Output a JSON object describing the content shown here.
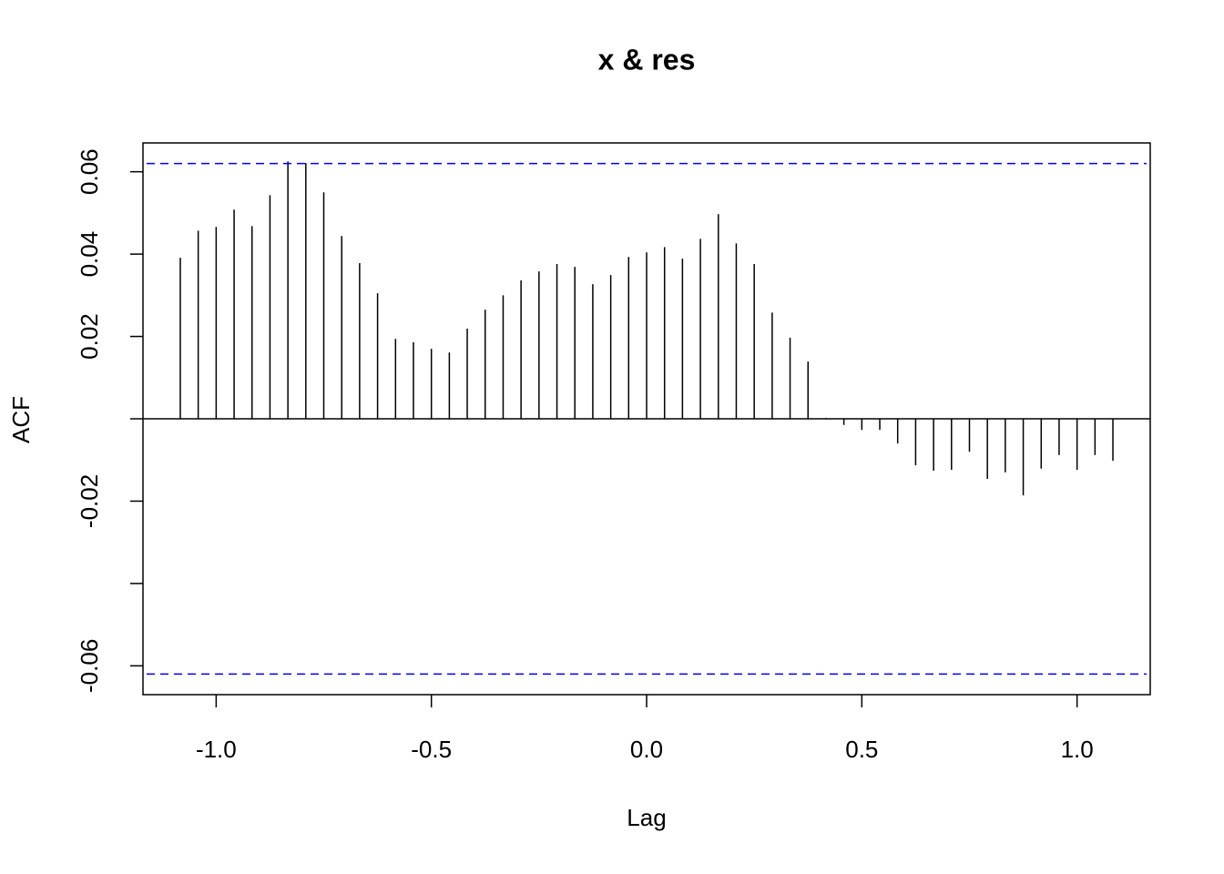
{
  "chart_data": {
    "type": "acf",
    "title": "x & res",
    "x_label": "Lag",
    "y_label": "ACF",
    "x": [
      -1.0833,
      -1.0417,
      -1,
      -0.9583,
      -0.9167,
      -0.875,
      -0.8333,
      -0.7917,
      -0.75,
      -0.7083,
      -0.6667,
      -0.625,
      -0.5833,
      -0.5417,
      -0.5,
      -0.4583,
      -0.4167,
      -0.375,
      -0.3333,
      -0.2917,
      -0.25,
      -0.2083,
      -0.1667,
      -0.125,
      -0.0833,
      -0.0417,
      0,
      0.0417,
      0.0833,
      0.125,
      0.1667,
      0.2083,
      0.25,
      0.2917,
      0.3333,
      0.375,
      0.4167,
      0.4583,
      0.5,
      0.5417,
      0.5833,
      0.625,
      0.6667,
      0.7083,
      0.75,
      0.7917,
      0.8333,
      0.875,
      0.9167,
      0.9583,
      1,
      1.0417,
      1.0833
    ],
    "values": [
      0.0391,
      0.0457,
      0.0466,
      0.0508,
      0.0468,
      0.0543,
      0.0625,
      0.0621,
      0.055,
      0.0444,
      0.0378,
      0.0305,
      0.0194,
      0.0186,
      0.017,
      0.0161,
      0.0219,
      0.0265,
      0.03,
      0.0336,
      0.0358,
      0.0376,
      0.0369,
      0.0327,
      0.0349,
      0.0393,
      0.0404,
      0.0417,
      0.0389,
      0.0437,
      0.0497,
      0.0426,
      0.0376,
      0.0258,
      0.0197,
      0.0139,
      0.0002,
      -0.0015,
      -0.0027,
      -0.0027,
      -0.006,
      -0.0113,
      -0.0126,
      -0.0124,
      -0.008,
      -0.0146,
      -0.013,
      -0.0186,
      -0.0121,
      -0.0088,
      -0.0124,
      -0.0088,
      -0.0102
    ],
    "color": "#000000",
    "ci": 0.062,
    "ci_color": "#0000ff",
    "xlim": [
      -1.17,
      1.17
    ],
    "ylim": [
      -0.067,
      0.067
    ],
    "xticks": [
      {
        "value": -1,
        "label": "-1.0"
      },
      {
        "value": -0.5,
        "label": "-0.5"
      },
      {
        "value": 0,
        "label": "0.0"
      },
      {
        "value": 0.5,
        "label": "0.5"
      },
      {
        "value": 1,
        "label": "1.0"
      }
    ],
    "yticks": [
      {
        "value": -0.06,
        "label": "-0.06"
      },
      {
        "value": -0.04,
        "label": null
      },
      -0.02,
      {
        "value": 0,
        "label": null
      },
      0.02,
      0.04,
      0.06
    ]
  }
}
